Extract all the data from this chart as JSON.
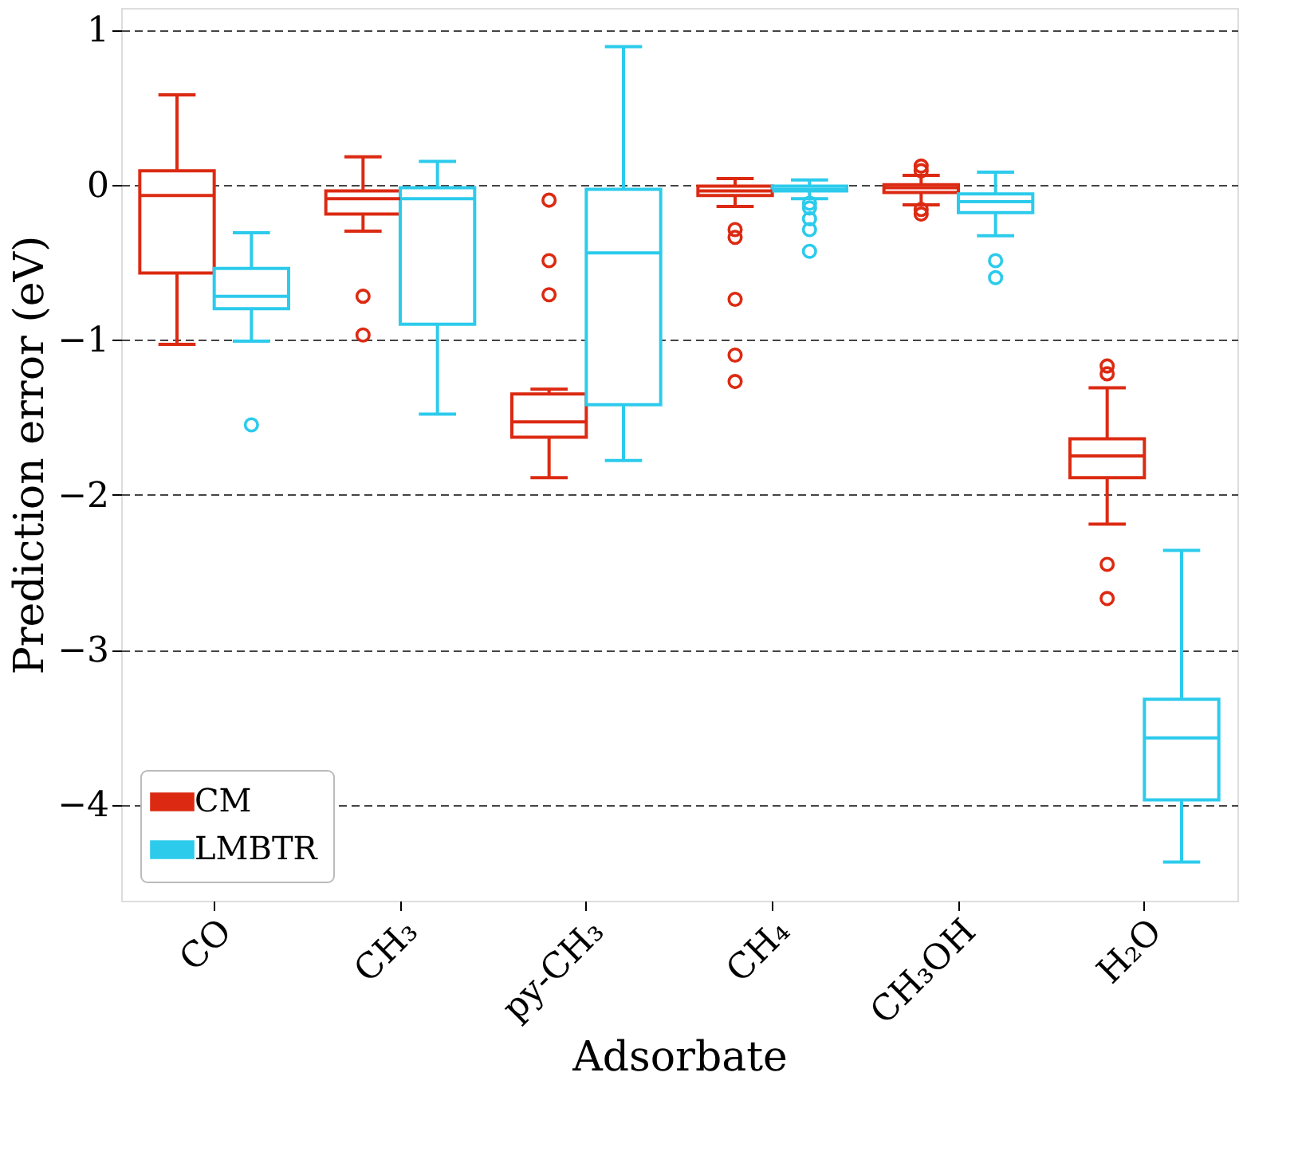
{
  "chart_data": {
    "type": "box",
    "xlabel": "Adsorbate",
    "ylabel": "Prediction error (eV)",
    "categories": [
      "CO",
      "CH₃",
      "py-CH₃",
      "CH₄",
      "CH₃OH",
      "H₂O"
    ],
    "ylim": [
      -4.62,
      1.14
    ],
    "yticks": [
      -4,
      -3,
      -2,
      -1,
      0,
      1
    ],
    "grid": "y",
    "legend": "bottom left",
    "series": [
      {
        "name": "CM",
        "color": "#dc2a12",
        "boxes": [
          {
            "low": -1.03,
            "q1": -0.57,
            "median": -0.07,
            "q3": 0.09,
            "high": 0.58
          },
          {
            "low": -0.3,
            "q1": -0.19,
            "median": -0.09,
            "q3": -0.04,
            "high": 0.18,
            "outliers": [
              -0.72,
              -0.97
            ]
          },
          {
            "low": -1.89,
            "q1": -1.63,
            "median": -1.53,
            "q3": -1.35,
            "high": -1.32,
            "outliers": [
              -0.1,
              -0.49,
              -0.71
            ]
          },
          {
            "low": -0.14,
            "q1": -0.07,
            "median": -0.04,
            "q3": -0.01,
            "high": 0.04,
            "outliers": [
              -0.29,
              -0.34,
              -0.74,
              -1.1,
              -1.27
            ]
          },
          {
            "low": -0.13,
            "q1": -0.05,
            "median": -0.02,
            "q3": 0.0,
            "high": 0.06,
            "outliers": [
              0.12,
              0.09,
              -0.16,
              -0.19
            ]
          },
          {
            "low": -2.19,
            "q1": -1.89,
            "median": -1.75,
            "q3": -1.64,
            "high": -1.31,
            "outliers": [
              -1.17,
              -1.22,
              -2.45,
              -2.67
            ]
          }
        ]
      },
      {
        "name": "LMBTR",
        "color": "#2ccbec",
        "boxes": [
          {
            "low": -1.01,
            "q1": -0.8,
            "median": -0.72,
            "q3": -0.54,
            "high": -0.31,
            "outliers": [
              -1.55
            ]
          },
          {
            "low": -1.48,
            "q1": -0.9,
            "median": -0.09,
            "q3": -0.02,
            "high": 0.15
          },
          {
            "low": -1.78,
            "q1": -1.42,
            "median": -0.44,
            "q3": -0.03,
            "high": 0.89
          },
          {
            "low": -0.09,
            "q1": -0.04,
            "median": -0.03,
            "q3": -0.01,
            "high": 0.03,
            "outliers": [
              -0.12,
              -0.15,
              -0.22,
              -0.29,
              -0.43
            ]
          },
          {
            "low": -0.33,
            "q1": -0.18,
            "median": -0.11,
            "q3": -0.06,
            "high": 0.08,
            "outliers": [
              -0.49,
              -0.6
            ]
          },
          {
            "low": -4.37,
            "q1": -3.97,
            "median": -3.57,
            "q3": -3.32,
            "high": -2.36
          }
        ]
      }
    ]
  }
}
